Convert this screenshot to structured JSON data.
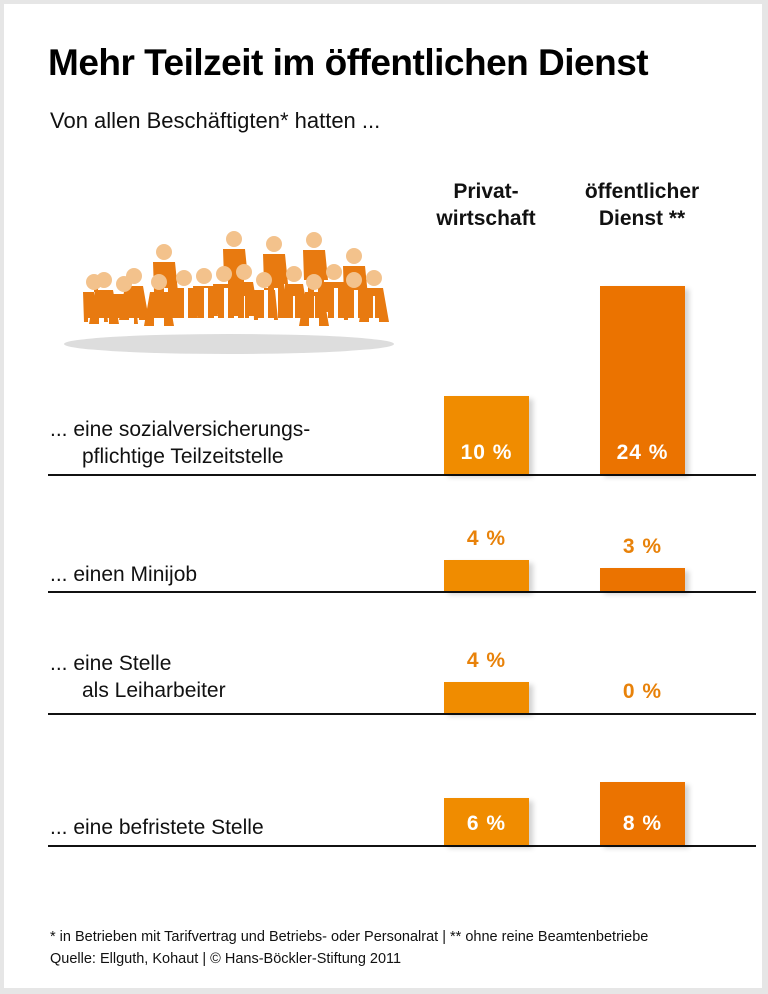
{
  "chart_data": {
    "type": "bar",
    "title": "Mehr Teilzeit im öffentlichen Dienst",
    "subtitle": "Von allen Beschäftigten* hatten ...",
    "categories": [
      [
        "... eine sozialversicherungs-",
        "pflichtige Teilzeitstelle"
      ],
      [
        "... einen Minijob"
      ],
      [
        "... eine Stelle",
        "als Leiharbeiter"
      ],
      [
        "... eine befristete Stelle"
      ]
    ],
    "series": [
      {
        "name": "Privat-\nwirtschaft",
        "values": [
          10,
          4,
          4,
          6
        ],
        "labels": [
          "10 %",
          "4 %",
          "4 %",
          "6 %"
        ],
        "color": "#f08c00"
      },
      {
        "name": "öffentlicher\nDienst **",
        "values": [
          24,
          3,
          0,
          8
        ],
        "labels": [
          "24 %",
          "3 %",
          "0 %",
          "8 %"
        ],
        "color": "#eb7300"
      }
    ],
    "unit": "%",
    "grid": false
  },
  "footnote": "* in Betrieben mit Tarifvertrag und Betriebs- oder Personalrat | ** ohne reine Beamtenbetriebe",
  "source": "Quelle: Ellguth, Kohaut | © Hans-Böckler-Stiftung 2011",
  "colors": {
    "label_color": "#e8820a",
    "figure_color": "#e87a10"
  },
  "illustration": "people-group-icon"
}
